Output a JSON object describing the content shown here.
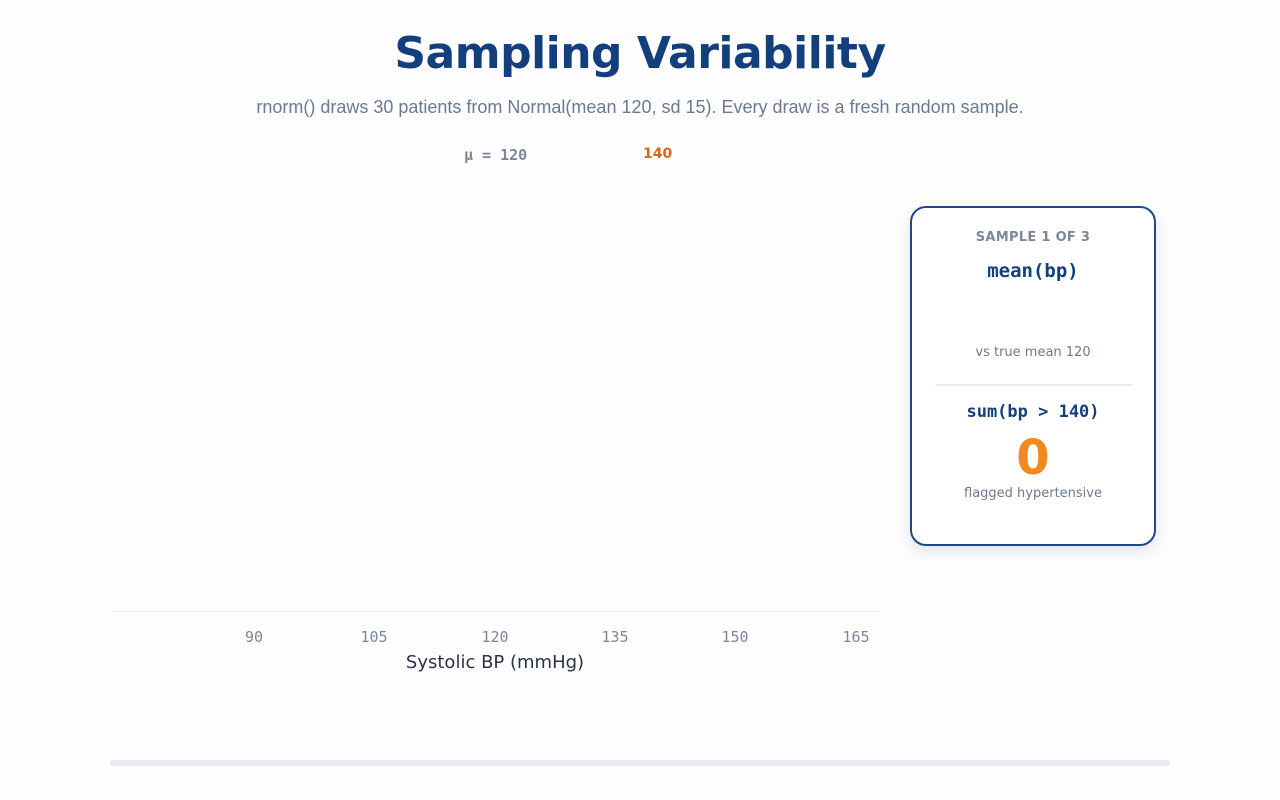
{
  "header": {
    "title": "Sampling Variability",
    "subtitle": "rnorm() draws 30 patients from Normal(mean 120, sd 15). Every draw is a fresh random sample."
  },
  "chart_data": {
    "type": "scatter",
    "title": "",
    "xlabel": "Systolic BP (mmHg)",
    "ylabel": "",
    "x_ticks": [
      "90",
      "105",
      "120",
      "135",
      "150",
      "165"
    ],
    "markers": {
      "mean_label": "μ = 120",
      "threshold_label": "140"
    },
    "series": []
  },
  "card": {
    "sample_label": "SAMPLE 1 OF 3",
    "mean_fn": "mean(bp)",
    "mean_value": "",
    "vs_label": "vs true mean 120",
    "sum_fn": "sum(bp > 140)",
    "flagged_count": "0",
    "flagged_label": "flagged hypertensive"
  },
  "progress": {
    "value": 0
  },
  "colors": {
    "title": "#143f7d",
    "accent": "#f08a1c",
    "threshold": "#d2691e",
    "muted": "#6b7a90"
  }
}
